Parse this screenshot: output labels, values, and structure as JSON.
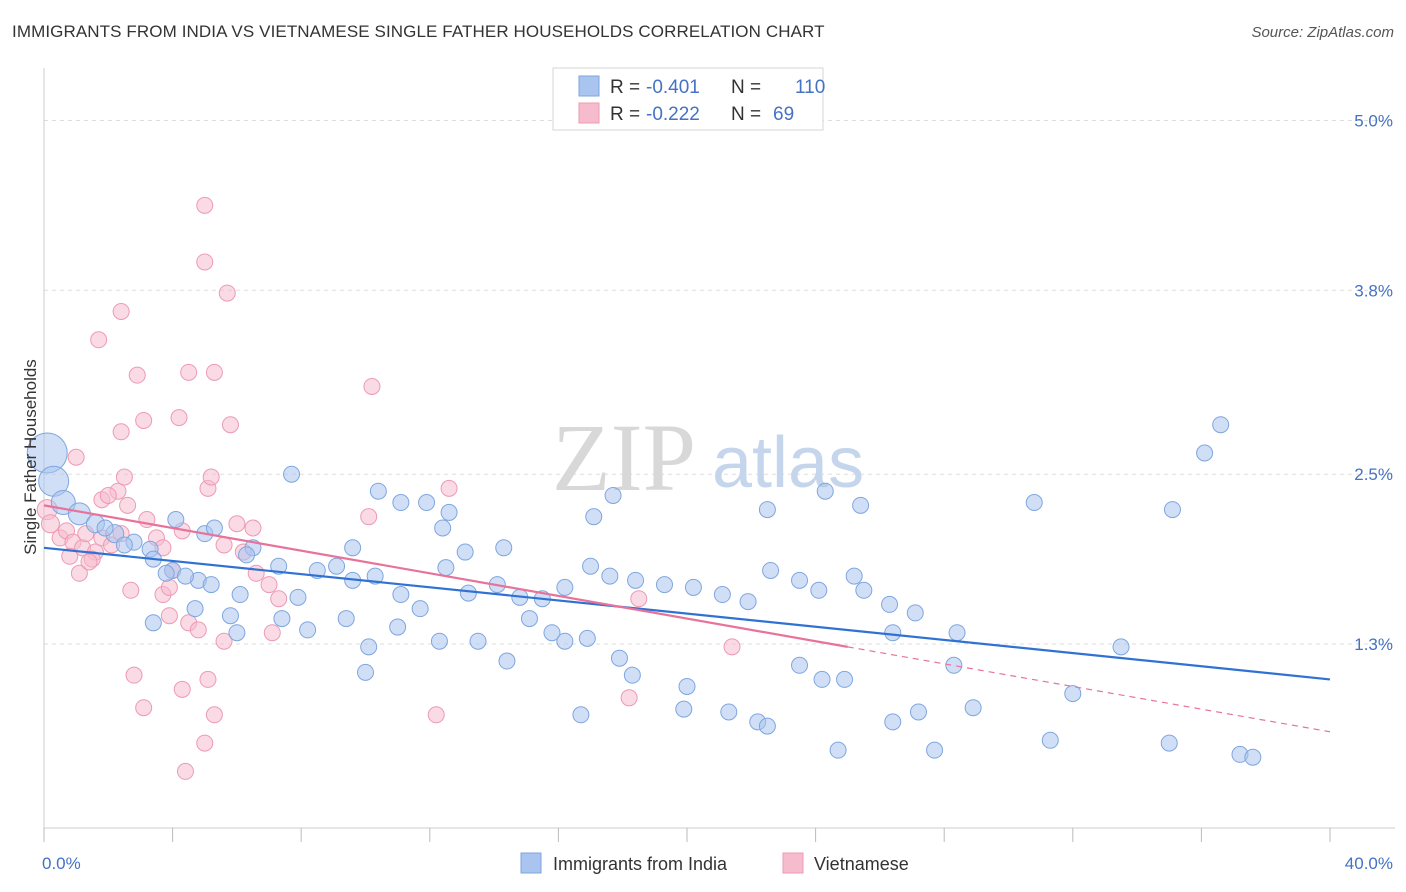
{
  "header": {
    "title": "IMMIGRANTS FROM INDIA VS VIETNAMESE SINGLE FATHER HOUSEHOLDS CORRELATION CHART",
    "source": "Source: ZipAtlas.com"
  },
  "watermark": {
    "zip": "ZIP",
    "atlas": "atlas"
  },
  "legend_top": {
    "rows": [
      {
        "r_label": "R =",
        "r_value": "-0.401",
        "n_label": "N =",
        "n_value": "110"
      },
      {
        "r_label": "R =",
        "r_value": "-0.222",
        "n_label": "N =",
        "n_value": "69"
      }
    ]
  },
  "legend_bottom": {
    "items": [
      {
        "label": "Immigrants from India"
      },
      {
        "label": "Vietnamese"
      }
    ]
  },
  "colors": {
    "india_fill": "#a9c4ee",
    "india_stroke": "#7ea6e0",
    "india_line": "#2f72d4",
    "viet_fill": "#f6bccd",
    "viet_stroke": "#ee9ab3",
    "viet_line": "#e8739a",
    "tick_text": "#4472c4",
    "grid": "#dddddd"
  },
  "chart_data": {
    "type": "scatter",
    "title": "IMMIGRANTS FROM INDIA VS VIETNAMESE SINGLE FATHER HOUSEHOLDS CORRELATION CHART",
    "xlabel": "",
    "ylabel": "Single Father Households",
    "xlim": [
      0,
      40
    ],
    "ylim": [
      0,
      5.3
    ],
    "x_tick_labels": [
      "0.0%",
      "40.0%"
    ],
    "y_ticks": [
      1.3,
      2.5,
      3.8,
      5.0
    ],
    "y_tick_labels": [
      "1.3%",
      "2.5%",
      "3.8%",
      "5.0%"
    ],
    "grid": true,
    "legend_position": "top-center",
    "series": [
      {
        "name": "Immigrants from India",
        "R": -0.401,
        "N": 110,
        "trend": {
          "x0": 0,
          "y0": 1.98,
          "x1": 40,
          "y1": 1.05
        },
        "points": [
          [
            0.1,
            2.65,
            20
          ],
          [
            0.3,
            2.45,
            15
          ],
          [
            0.6,
            2.3,
            12
          ],
          [
            1.1,
            2.22,
            11
          ],
          [
            1.6,
            2.15,
            9
          ],
          [
            2.2,
            2.08,
            9
          ],
          [
            2.8,
            2.02,
            8
          ],
          [
            3.3,
            1.97,
            8
          ],
          [
            1.9,
            2.12,
            8
          ],
          [
            2.5,
            2.0,
            8
          ],
          [
            3.4,
            1.9,
            8
          ],
          [
            4.0,
            1.82,
            8
          ],
          [
            4.8,
            1.75,
            8
          ],
          [
            5.2,
            1.72,
            8
          ],
          [
            3.8,
            1.8,
            8
          ],
          [
            4.4,
            1.78,
            8
          ],
          [
            6.1,
            1.65,
            8
          ],
          [
            6.5,
            1.98,
            8
          ],
          [
            7.3,
            1.85,
            8
          ],
          [
            7.9,
            1.63,
            8
          ],
          [
            8.5,
            1.82,
            8
          ],
          [
            9.1,
            1.85,
            8
          ],
          [
            9.6,
            1.75,
            8
          ],
          [
            10.3,
            1.78,
            8
          ],
          [
            11.1,
            1.65,
            8
          ],
          [
            11.7,
            1.55,
            8
          ],
          [
            12.5,
            1.84,
            8
          ],
          [
            13.2,
            1.66,
            8
          ],
          [
            14.1,
            1.72,
            8
          ],
          [
            14.8,
            1.63,
            8
          ],
          [
            15.5,
            1.62,
            8
          ],
          [
            16.2,
            1.7,
            8
          ],
          [
            17.0,
            1.85,
            8
          ],
          [
            17.6,
            1.78,
            8
          ],
          [
            18.4,
            1.75,
            8
          ],
          [
            19.3,
            1.72,
            8
          ],
          [
            20.2,
            1.7,
            8
          ],
          [
            21.1,
            1.65,
            8
          ],
          [
            21.9,
            1.6,
            8
          ],
          [
            22.6,
            1.82,
            8
          ],
          [
            23.5,
            1.75,
            8
          ],
          [
            24.1,
            1.68,
            8
          ],
          [
            25.2,
            1.78,
            8
          ],
          [
            25.5,
            1.68,
            8
          ],
          [
            26.3,
            1.58,
            8
          ],
          [
            27.1,
            1.52,
            8
          ],
          [
            4.1,
            2.18,
            8
          ],
          [
            5.0,
            2.08,
            8
          ],
          [
            5.3,
            2.12,
            8
          ],
          [
            6.3,
            1.93,
            8
          ],
          [
            7.7,
            2.5,
            8
          ],
          [
            9.6,
            1.98,
            8
          ],
          [
            10.4,
            2.38,
            8
          ],
          [
            11.1,
            2.3,
            8
          ],
          [
            11.9,
            2.3,
            8
          ],
          [
            12.6,
            2.23,
            8
          ],
          [
            12.4,
            2.12,
            8
          ],
          [
            13.1,
            1.95,
            8
          ],
          [
            14.3,
            1.98,
            8
          ],
          [
            17.1,
            2.2,
            8
          ],
          [
            17.7,
            2.35,
            8
          ],
          [
            22.5,
            2.25,
            8
          ],
          [
            24.3,
            2.38,
            8
          ],
          [
            25.4,
            2.28,
            8
          ],
          [
            30.8,
            2.3,
            8
          ],
          [
            35.1,
            2.25,
            8
          ],
          [
            36.1,
            2.65,
            8
          ],
          [
            36.6,
            2.85,
            8
          ],
          [
            3.4,
            1.45,
            8
          ],
          [
            4.7,
            1.55,
            8
          ],
          [
            5.8,
            1.5,
            8
          ],
          [
            6.0,
            1.38,
            8
          ],
          [
            7.4,
            1.48,
            8
          ],
          [
            8.2,
            1.4,
            8
          ],
          [
            9.4,
            1.48,
            8
          ],
          [
            10.1,
            1.28,
            8
          ],
          [
            11.0,
            1.42,
            8
          ],
          [
            12.3,
            1.32,
            8
          ],
          [
            13.5,
            1.32,
            8
          ],
          [
            14.4,
            1.18,
            8
          ],
          [
            15.1,
            1.48,
            8
          ],
          [
            15.8,
            1.38,
            8
          ],
          [
            16.2,
            1.32,
            8
          ],
          [
            16.9,
            1.34,
            8
          ],
          [
            17.9,
            1.2,
            8
          ],
          [
            18.3,
            1.08,
            8
          ],
          [
            20.0,
            1.0,
            8
          ],
          [
            19.9,
            0.84,
            8
          ],
          [
            21.3,
            0.82,
            8
          ],
          [
            22.2,
            0.75,
            8
          ],
          [
            23.5,
            1.15,
            8
          ],
          [
            24.2,
            1.05,
            8
          ],
          [
            24.9,
            1.05,
            8
          ],
          [
            24.7,
            0.55,
            8
          ],
          [
            26.4,
            1.38,
            8
          ],
          [
            26.4,
            0.75,
            8
          ],
          [
            27.7,
            0.55,
            8
          ],
          [
            28.4,
            1.38,
            8
          ],
          [
            28.3,
            1.15,
            8
          ],
          [
            28.9,
            0.85,
            8
          ],
          [
            31.3,
            0.62,
            8
          ],
          [
            32.0,
            0.95,
            8
          ],
          [
            33.5,
            1.28,
            8
          ],
          [
            35.0,
            0.6,
            8
          ],
          [
            37.2,
            0.52,
            8
          ],
          [
            37.6,
            0.5,
            8
          ],
          [
            10.0,
            1.1,
            8
          ],
          [
            16.7,
            0.8,
            8
          ],
          [
            22.5,
            0.72,
            8
          ],
          [
            27.2,
            0.82,
            8
          ]
        ]
      },
      {
        "name": "Vietnamese",
        "R": -0.222,
        "N": 69,
        "trend": {
          "x0": 0,
          "y0": 2.28,
          "x1": 25,
          "y1": 1.28
        },
        "trend_dashed_to": {
          "x1": 40,
          "y1": 0.68
        },
        "points": [
          [
            0.1,
            2.25,
            10
          ],
          [
            0.2,
            2.15,
            9
          ],
          [
            0.5,
            2.05,
            8
          ],
          [
            0.7,
            2.1,
            8
          ],
          [
            0.9,
            2.02,
            8
          ],
          [
            1.2,
            1.98,
            8
          ],
          [
            1.3,
            2.08,
            8
          ],
          [
            1.6,
            1.95,
            8
          ],
          [
            1.8,
            2.05,
            8
          ],
          [
            2.1,
            2.0,
            8
          ],
          [
            2.4,
            2.08,
            8
          ],
          [
            1.8,
            2.32,
            8
          ],
          [
            2.3,
            2.38,
            8
          ],
          [
            2.6,
            2.28,
            8
          ],
          [
            3.2,
            2.18,
            8
          ],
          [
            3.5,
            2.05,
            8
          ],
          [
            3.7,
            1.98,
            8
          ],
          [
            4.0,
            1.82,
            8
          ],
          [
            4.3,
            2.1,
            8
          ],
          [
            5.1,
            2.4,
            8
          ],
          [
            5.6,
            2.0,
            8
          ],
          [
            6.2,
            1.95,
            8
          ],
          [
            6.5,
            2.12,
            8
          ],
          [
            7.0,
            1.72,
            8
          ],
          [
            7.3,
            1.62,
            8
          ],
          [
            1.0,
            2.62,
            8
          ],
          [
            2.4,
            2.8,
            8
          ],
          [
            2.5,
            2.48,
            8
          ],
          [
            3.1,
            2.88,
            8
          ],
          [
            4.2,
            2.9,
            8
          ],
          [
            5.2,
            2.48,
            8
          ],
          [
            5.8,
            2.85,
            8
          ],
          [
            4.5,
            3.22,
            8
          ],
          [
            5.3,
            3.22,
            8
          ],
          [
            2.9,
            3.2,
            8
          ],
          [
            1.7,
            3.45,
            8
          ],
          [
            2.4,
            3.65,
            8
          ],
          [
            5.7,
            3.78,
            8
          ],
          [
            5.0,
            4.0,
            8
          ],
          [
            5.0,
            4.4,
            8
          ],
          [
            10.2,
            3.12,
            8
          ],
          [
            10.1,
            2.2,
            8
          ],
          [
            12.6,
            2.4,
            8
          ],
          [
            1.1,
            1.8,
            8
          ],
          [
            1.5,
            1.9,
            8
          ],
          [
            2.7,
            1.68,
            8
          ],
          [
            3.7,
            1.65,
            8
          ],
          [
            3.9,
            1.5,
            8
          ],
          [
            4.5,
            1.45,
            8
          ],
          [
            4.8,
            1.4,
            8
          ],
          [
            5.6,
            1.32,
            8
          ],
          [
            7.1,
            1.38,
            8
          ],
          [
            2.8,
            1.08,
            8
          ],
          [
            3.1,
            0.85,
            8
          ],
          [
            4.3,
            0.98,
            8
          ],
          [
            5.1,
            1.05,
            8
          ],
          [
            5.3,
            0.8,
            8
          ],
          [
            5.0,
            0.6,
            8
          ],
          [
            4.4,
            0.4,
            8
          ],
          [
            12.2,
            0.8,
            8
          ],
          [
            18.2,
            0.92,
            8
          ],
          [
            18.5,
            1.62,
            8
          ],
          [
            21.4,
            1.28,
            8
          ],
          [
            6.0,
            2.15,
            8
          ],
          [
            3.9,
            1.7,
            8
          ],
          [
            2.0,
            2.35,
            8
          ],
          [
            1.4,
            1.88,
            8
          ],
          [
            0.8,
            1.92,
            8
          ],
          [
            6.6,
            1.8,
            8
          ]
        ]
      }
    ]
  }
}
